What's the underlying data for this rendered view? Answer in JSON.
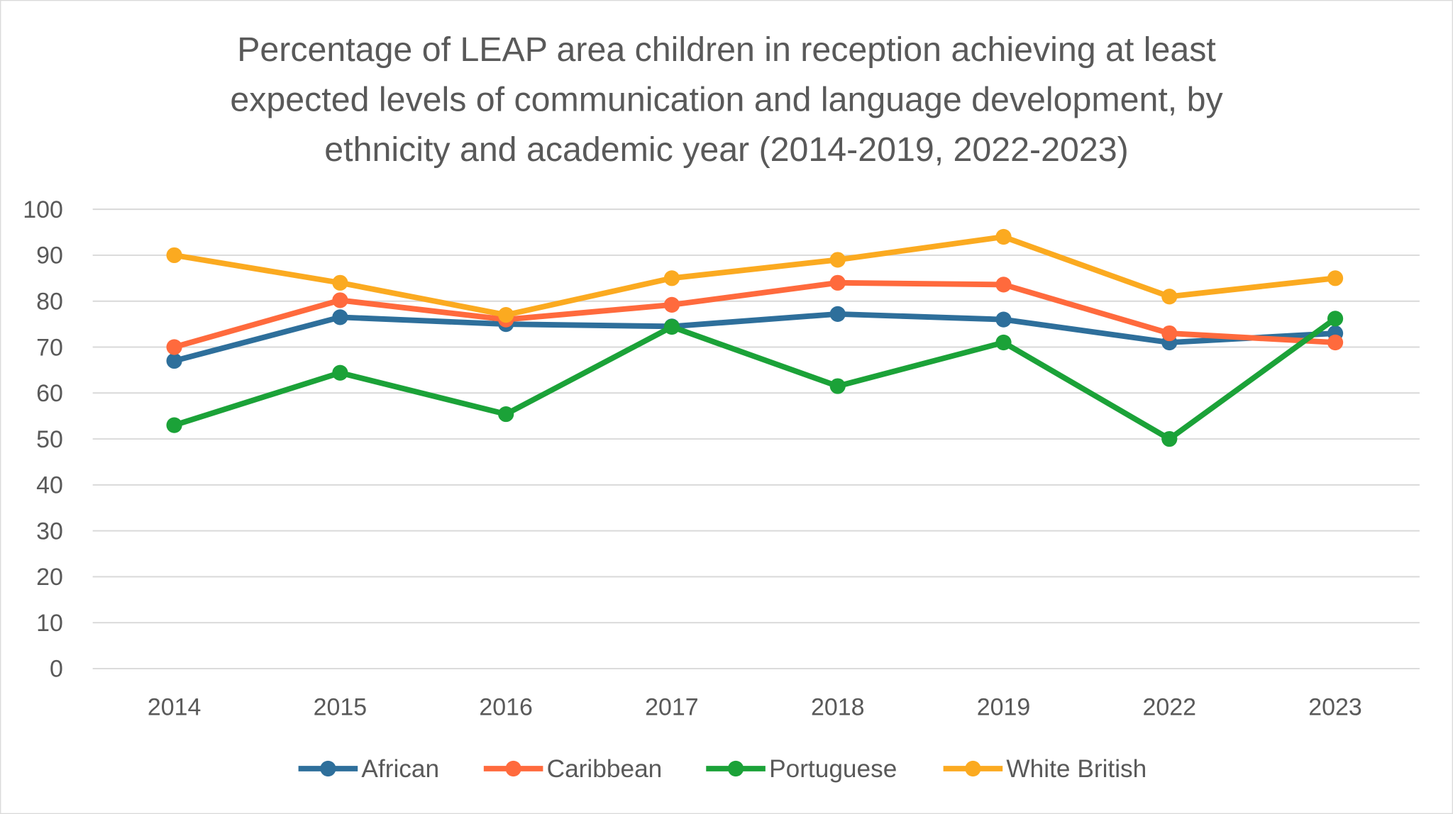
{
  "chart_data": {
    "type": "line",
    "title": "Percentage of LEAP area children in reception achieving at least expected levels of communication and language development, by ethnicity and academic year (2014-2019, 2022-2023)",
    "title_lines": [
      "Percentage of LEAP area children in reception achieving at least",
      "expected levels of communication and language development, by",
      "ethnicity and academic year (2014-2019, 2022-2023)"
    ],
    "xlabel": "",
    "ylabel": "",
    "categories": [
      "2014",
      "2015",
      "2016",
      "2017",
      "2018",
      "2019",
      "2022",
      "2023"
    ],
    "ylim": [
      0,
      100
    ],
    "yticks": [
      "0",
      "10",
      "20",
      "30",
      "40",
      "50",
      "60",
      "70",
      "80",
      "90",
      "100"
    ],
    "grid": true,
    "legend_position": "bottom",
    "series": [
      {
        "name": "African",
        "color": "#2E6F9B",
        "values": [
          67,
          76.5,
          75,
          74.5,
          77.2,
          76,
          71,
          73
        ]
      },
      {
        "name": "Caribbean",
        "color": "#FF6A3D",
        "values": [
          70,
          80.2,
          76,
          79.2,
          84,
          83.6,
          73,
          71
        ]
      },
      {
        "name": "Portuguese",
        "color": "#1BA238",
        "values": [
          53,
          64.4,
          55.4,
          74.4,
          61.5,
          71,
          50,
          76.2
        ]
      },
      {
        "name": "White British",
        "color": "#FBAA20",
        "values": [
          90,
          84,
          77,
          85,
          89,
          94,
          81,
          85
        ]
      }
    ]
  }
}
